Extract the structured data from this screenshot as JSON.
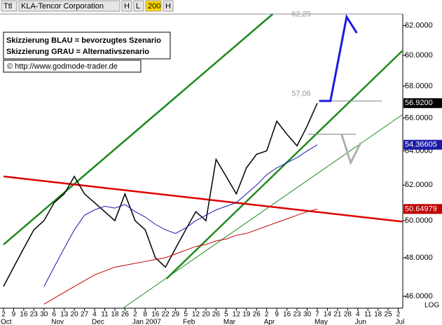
{
  "toolbar": {
    "items": [
      "Ttl",
      "KLA-Tencor Corporation",
      "H",
      "L",
      "200",
      "H"
    ]
  },
  "chart_data": {
    "type": "line",
    "log_scale": true,
    "categories": [
      "2",
      "9",
      "16",
      "23",
      "30",
      "6",
      "13",
      "20",
      "27",
      "4",
      "11",
      "18",
      "26",
      "2",
      "8",
      "16",
      "22",
      "29",
      "5",
      "12",
      "20",
      "26",
      "5",
      "12",
      "19",
      "26",
      "2",
      "9",
      "16",
      "23",
      "30",
      "7",
      "14",
      "21",
      "28",
      "4",
      "11",
      "18",
      "25",
      "2"
    ],
    "months": [
      "Oct",
      null,
      null,
      null,
      null,
      "Nov",
      null,
      null,
      null,
      "Dec",
      null,
      null,
      null,
      "Jan 2007",
      null,
      null,
      null,
      null,
      "Feb",
      null,
      null,
      null,
      "Mar",
      null,
      null,
      null,
      "Apr",
      null,
      null,
      null,
      null,
      "May",
      null,
      null,
      null,
      "Jun",
      null,
      null,
      null,
      "Jul"
    ],
    "ylim": [
      45.4,
      62.8
    ],
    "yticks": [
      {
        "value": 46,
        "label": "46.0000"
      },
      {
        "value": 48,
        "label": "48.0000"
      },
      {
        "value": 50,
        "label": "50.0000"
      },
      {
        "value": 52,
        "label": "52.0000"
      },
      {
        "value": 54,
        "label": "54.0000"
      },
      {
        "value": 56,
        "label": "56.0000"
      },
      {
        "value": 58,
        "label": "58.0000"
      },
      {
        "value": 60,
        "label": "60.0000"
      },
      {
        "value": 62,
        "label": "62.0000"
      }
    ],
    "series": [
      {
        "color": "#000000",
        "values": [
          46.5,
          47.5,
          48.5,
          49.5,
          50.0,
          51.0,
          51.5,
          52.5,
          51.5,
          51.0,
          50.5,
          50.0,
          51.5,
          50.0,
          49.5,
          48.0,
          47.5,
          48.5,
          49.5,
          50.5,
          50.0,
          53.5,
          52.5,
          51.5,
          53.0,
          53.8,
          54.0,
          55.8,
          55.0,
          54.3,
          55.5,
          56.92,
          null,
          null,
          null,
          null,
          null,
          null,
          null,
          null
        ],
        "value_labels": [
          null,
          null,
          null,
          null,
          null,
          null,
          null,
          null,
          null,
          null,
          null,
          null,
          null,
          null,
          null,
          null,
          null,
          null,
          null,
          null,
          null,
          null,
          null,
          null,
          null,
          null,
          null,
          null,
          null,
          null,
          null,
          "56.9200",
          null,
          null,
          null,
          null,
          null,
          null,
          null,
          null
        ]
      },
      {
        "color": "#1a1aa8",
        "values": [
          null,
          null,
          null,
          null,
          46.5,
          47.5,
          48.5,
          49.5,
          50.3,
          50.6,
          50.8,
          50.7,
          50.9,
          50.5,
          50.2,
          49.8,
          49.5,
          49.3,
          49.6,
          50.0,
          50.3,
          50.6,
          50.8,
          51.0,
          51.5,
          52.0,
          52.6,
          53.0,
          53.3,
          53.6,
          54.0,
          54.36605,
          null,
          null,
          null,
          null,
          null,
          null,
          null,
          null
        ],
        "value_labels": [
          null,
          null,
          null,
          null,
          null,
          null,
          null,
          null,
          null,
          null,
          null,
          null,
          null,
          null,
          null,
          null,
          null,
          null,
          null,
          null,
          null,
          null,
          null,
          null,
          null,
          null,
          null,
          null,
          null,
          null,
          null,
          "54.36605",
          null,
          null,
          null,
          null,
          null,
          null,
          null,
          null
        ]
      },
      {
        "color": "#c00000",
        "values": [
          null,
          null,
          null,
          null,
          45.6,
          45.9,
          46.2,
          46.5,
          46.8,
          47.1,
          47.3,
          47.5,
          47.6,
          47.7,
          47.8,
          47.9,
          48.0,
          48.2,
          48.4,
          48.6,
          48.7,
          48.9,
          49.0,
          49.2,
          49.3,
          49.5,
          49.7,
          49.9,
          50.1,
          50.3,
          50.5,
          50.64979,
          null,
          null,
          null,
          null,
          null,
          null,
          null,
          null
        ],
        "value_labels": [
          null,
          null,
          null,
          null,
          null,
          null,
          null,
          null,
          null,
          null,
          null,
          null,
          null,
          null,
          null,
          null,
          null,
          null,
          null,
          null,
          null,
          null,
          null,
          null,
          null,
          null,
          null,
          null,
          null,
          null,
          null,
          "50.64979",
          null,
          null,
          null,
          null,
          null,
          null,
          null,
          null
        ]
      }
    ],
    "overlays": [
      {
        "color": "#1e8a1e",
        "width": 2.5,
        "x": [
          0,
          26.6
        ],
        "y": [
          48.7,
          62.8
        ]
      },
      {
        "color": "#1e8a1e",
        "width": 2.5,
        "x": [
          16.1,
          39.4
        ],
        "y": [
          46.9,
          60.3
        ]
      },
      {
        "color": "#1e8a1e",
        "width": 1,
        "x": [
          11.8,
          39.4
        ],
        "y": [
          45.4,
          56.2
        ]
      },
      {
        "color": "#e00000",
        "width": 2.5,
        "x": [
          0,
          39.4
        ],
        "y": [
          52.5,
          49.95
        ]
      },
      {
        "color": "#808080",
        "width": 1,
        "x": [
          31.1,
          37.4
        ],
        "y": [
          57.06,
          57.06
        ]
      },
      {
        "color": "#808080",
        "width": 1,
        "x": [
          30.1,
          34.8
        ],
        "y": [
          55.0,
          55.0
        ]
      },
      {
        "color": "#1a1ae0",
        "width": 3,
        "x": [
          31.2,
          32.3,
          33.9,
          34.9
        ],
        "y": [
          57.06,
          57.06,
          62.6,
          61.5
        ]
      },
      {
        "color": "#b0b0b0",
        "width": 3,
        "x": [
          33.4,
          34.3,
          35.3
        ],
        "y": [
          55.0,
          53.3,
          54.5
        ]
      }
    ],
    "annotations": [
      {
        "value": 62.29,
        "label": "62,29"
      },
      {
        "value": 57.06,
        "label": "57,06"
      }
    ],
    "notes": [
      "Skizzierung BLAU = bevorzugtes Szenario",
      "Skizzierung GRAU = Alternativszenario",
      "© http://www.godmode-trader.de"
    ],
    "scale_label": "LOG"
  }
}
